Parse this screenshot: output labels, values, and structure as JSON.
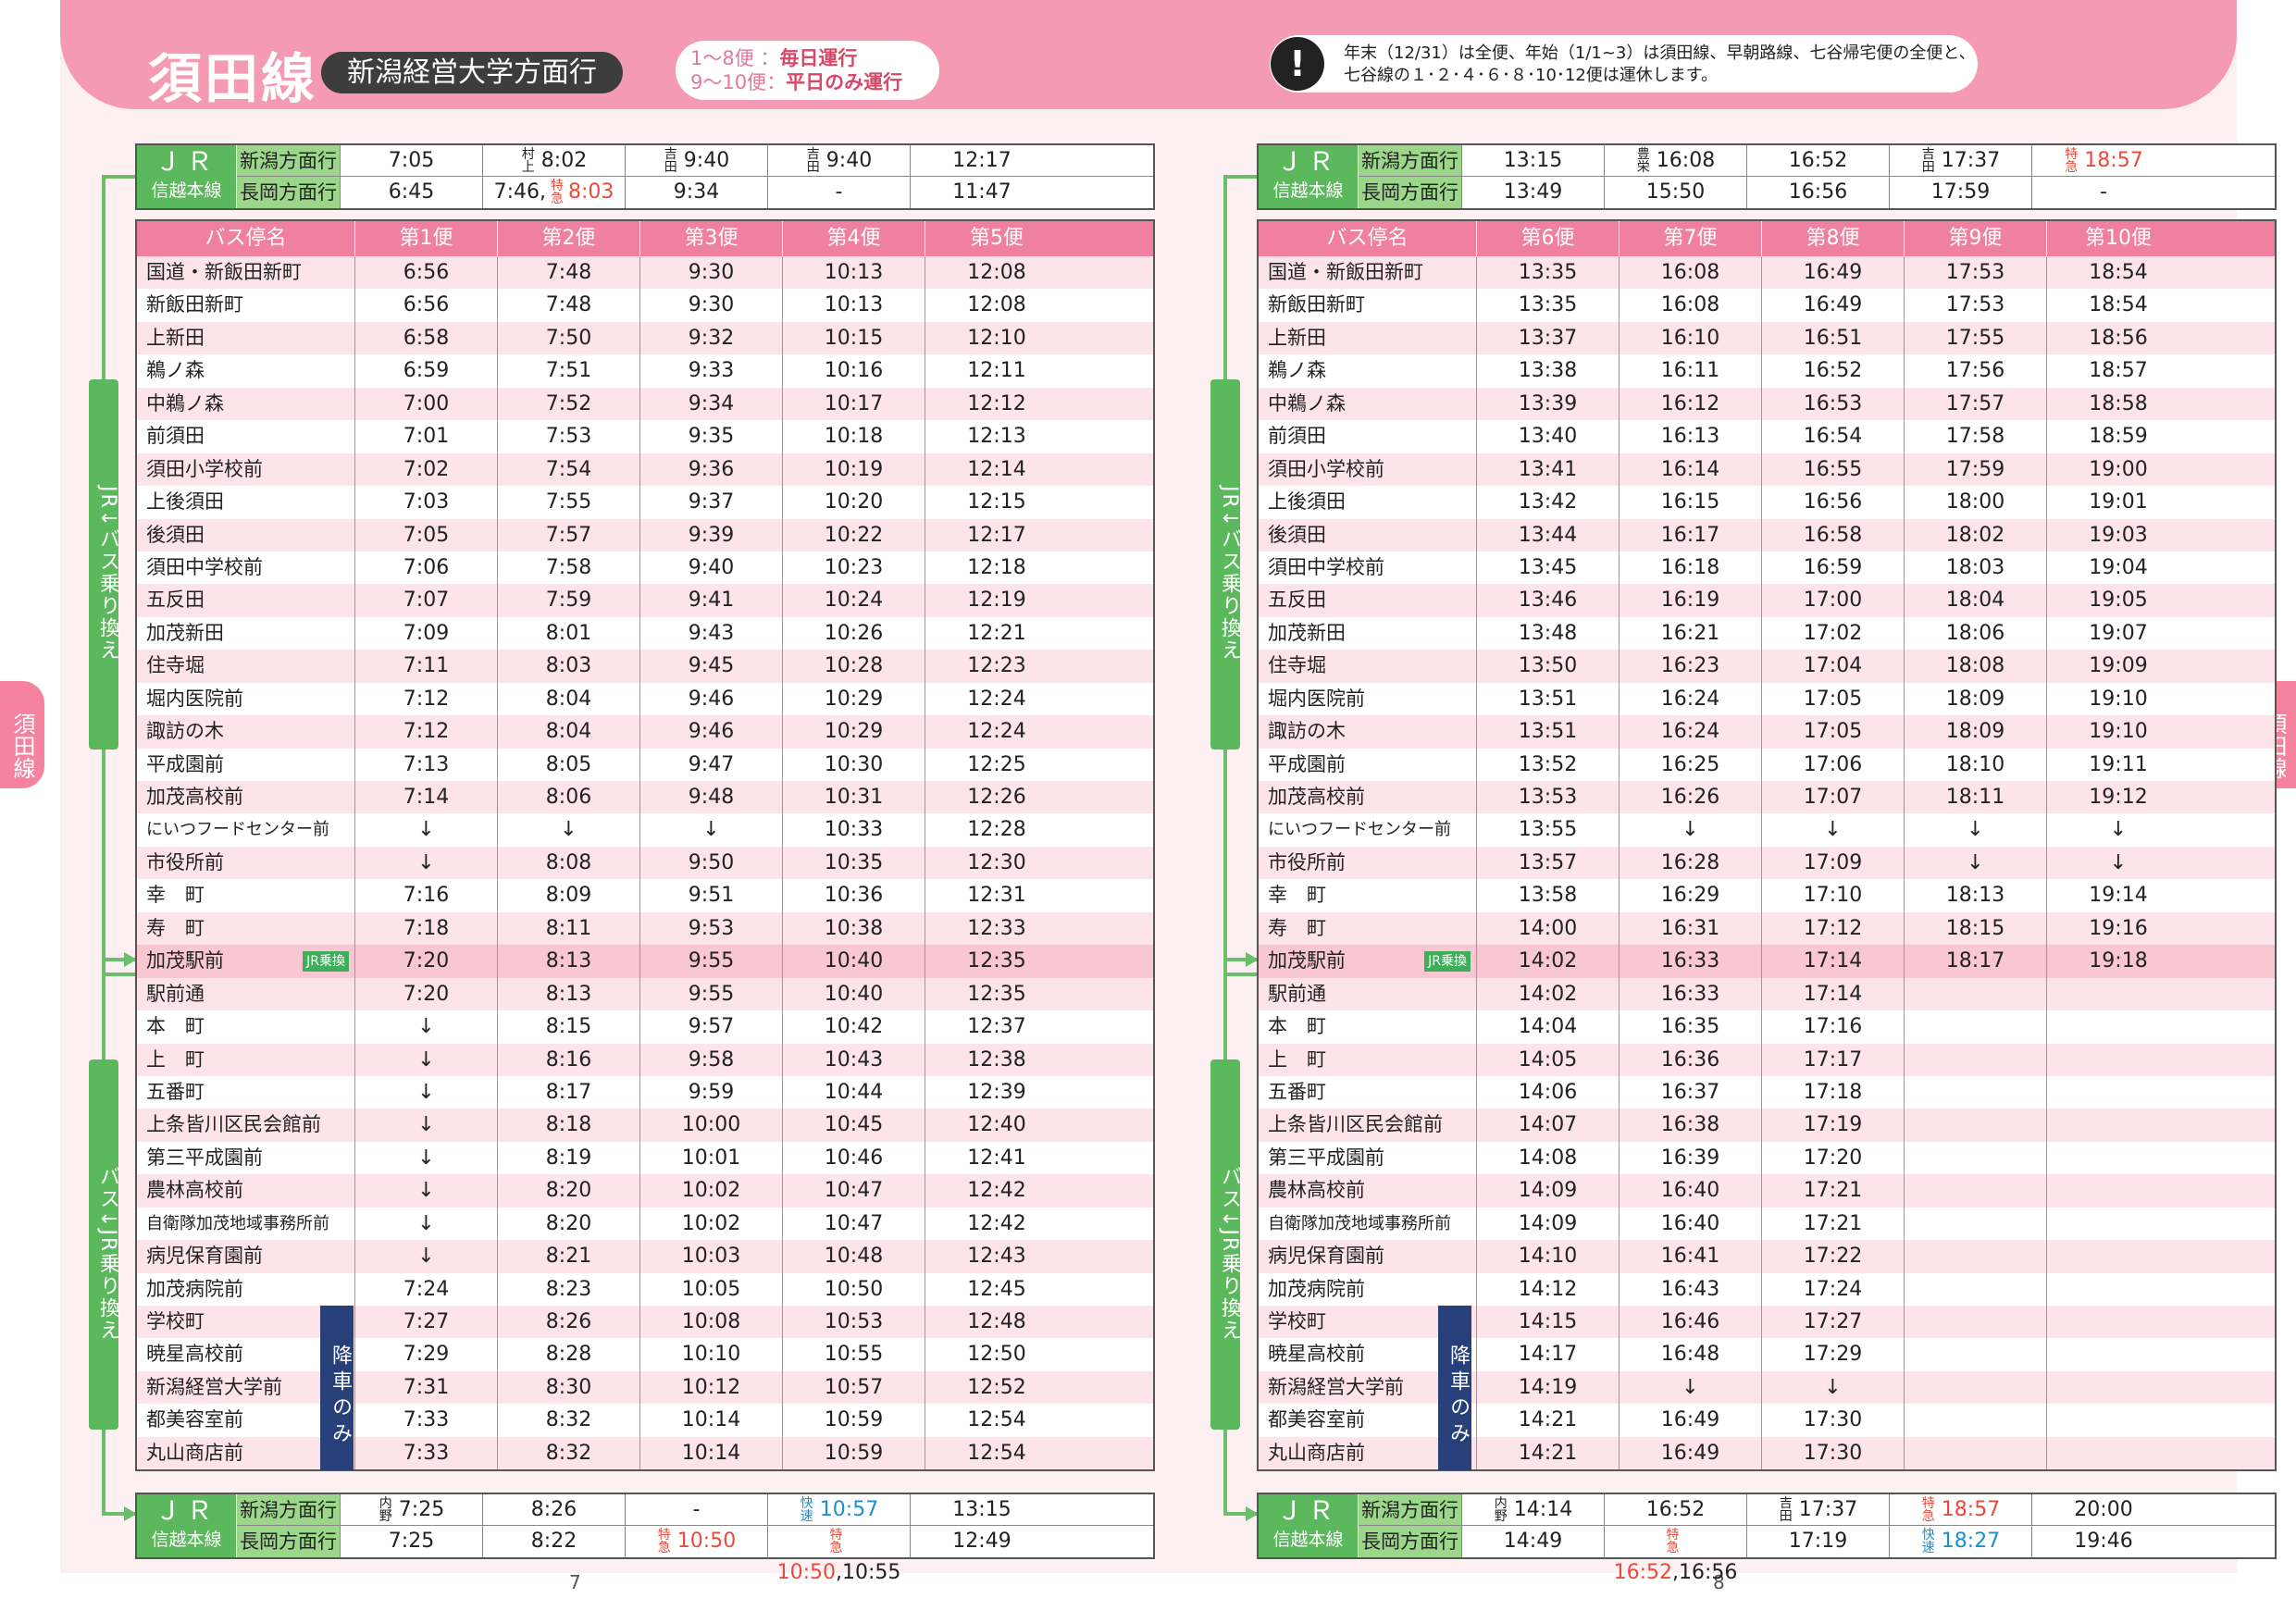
{
  "header": {
    "title": "須田線",
    "subtitle": "新潟経営大学方面行",
    "run_info": [
      {
        "prefix": "1～8便 ：",
        "emph": "毎日運行"
      },
      {
        "prefix": "9～10便：",
        "emph": "平日のみ運行"
      }
    ],
    "notice_line1": "年末（12/31）は全便、年始（1/1~3）は須田線、早朝路線、七谷帰宅便の全便と、",
    "notice_line2": "七谷線の１･２･４･６･８･10･12便は運休します。",
    "notice_icon": "exclamation-icon"
  },
  "side_tab": "須田線",
  "colors": {
    "pink": "#f59ab4",
    "green": "#5cb85c",
    "navy": "#27407a",
    "express_red": "#e84b3a",
    "rapid_blue": "#1d8ecf"
  },
  "labels": {
    "jr": "ＪＲ",
    "jr_line": "信越本線",
    "dir_niigata": "新潟方面行",
    "dir_nagaoka": "長岡方面行",
    "stop_header": "バス停名",
    "jr_badge": "JR乗換",
    "dropoff_only": "降車のみ",
    "transfer_up": "JR↓バス乗り換え",
    "transfer_down": "バス↓JR乗り換え"
  },
  "left": {
    "page_number": "7",
    "top_jr": {
      "niigata": [
        {
          "note": "",
          "time": "7:05"
        },
        {
          "note": "村上",
          "time": "8:02"
        },
        {
          "note": "吉田",
          "time": "9:40"
        },
        {
          "note": "吉田",
          "time": "9:40"
        },
        {
          "note": "",
          "time": "12:17"
        }
      ],
      "nagaoka": [
        {
          "note": "",
          "time": "6:45"
        },
        {
          "note": "",
          "time": "7:46,",
          "note2": "特急",
          "time2": "8:03"
        },
        {
          "note": "",
          "time": "9:34"
        },
        {
          "note": "",
          "time": "-"
        },
        {
          "note": "",
          "time": "11:47"
        }
      ]
    },
    "table": {
      "headers": [
        "第1便",
        "第2便",
        "第3便",
        "第4便",
        "第5便"
      ],
      "rows": [
        [
          "国道・新飯田新町",
          "6:56",
          "7:48",
          "9:30",
          "10:13",
          "12:08"
        ],
        [
          "新飯田新町",
          "6:56",
          "7:48",
          "9:30",
          "10:13",
          "12:08"
        ],
        [
          "上新田",
          "6:58",
          "7:50",
          "9:32",
          "10:15",
          "12:10"
        ],
        [
          "鵜ノ森",
          "6:59",
          "7:51",
          "9:33",
          "10:16",
          "12:11"
        ],
        [
          "中鵜ノ森",
          "7:00",
          "7:52",
          "9:34",
          "10:17",
          "12:12"
        ],
        [
          "前須田",
          "7:01",
          "7:53",
          "9:35",
          "10:18",
          "12:13"
        ],
        [
          "須田小学校前",
          "7:02",
          "7:54",
          "9:36",
          "10:19",
          "12:14"
        ],
        [
          "上後須田",
          "7:03",
          "7:55",
          "9:37",
          "10:20",
          "12:15"
        ],
        [
          "後須田",
          "7:05",
          "7:57",
          "9:39",
          "10:22",
          "12:17"
        ],
        [
          "須田中学校前",
          "7:06",
          "7:58",
          "9:40",
          "10:23",
          "12:18"
        ],
        [
          "五反田",
          "7:07",
          "7:59",
          "9:41",
          "10:24",
          "12:19"
        ],
        [
          "加茂新田",
          "7:09",
          "8:01",
          "9:43",
          "10:26",
          "12:21"
        ],
        [
          "住寺堀",
          "7:11",
          "8:03",
          "9:45",
          "10:28",
          "12:23"
        ],
        [
          "堀内医院前",
          "7:12",
          "8:04",
          "9:46",
          "10:29",
          "12:24"
        ],
        [
          "諏訪の木",
          "7:12",
          "8:04",
          "9:46",
          "10:29",
          "12:24"
        ],
        [
          "平成園前",
          "7:13",
          "8:05",
          "9:47",
          "10:30",
          "12:25"
        ],
        [
          "加茂高校前",
          "7:14",
          "8:06",
          "9:48",
          "10:31",
          "12:26"
        ],
        [
          "にいつフードセンター前",
          "↓",
          "↓",
          "↓",
          "10:33",
          "12:28"
        ],
        [
          "市役所前",
          "↓",
          "8:08",
          "9:50",
          "10:35",
          "12:30"
        ],
        [
          "幸　町",
          "7:16",
          "8:09",
          "9:51",
          "10:36",
          "12:31"
        ],
        [
          "寿　町",
          "7:18",
          "8:11",
          "9:53",
          "10:38",
          "12:33"
        ],
        [
          "加茂駅前",
          "7:20",
          "8:13",
          "9:55",
          "10:40",
          "12:35"
        ],
        [
          "駅前通",
          "7:20",
          "8:13",
          "9:55",
          "10:40",
          "12:35"
        ],
        [
          "本　町",
          "↓",
          "8:15",
          "9:57",
          "10:42",
          "12:37"
        ],
        [
          "上　町",
          "↓",
          "8:16",
          "9:58",
          "10:43",
          "12:38"
        ],
        [
          "五番町",
          "↓",
          "8:17",
          "9:59",
          "10:44",
          "12:39"
        ],
        [
          "上条皆川区民会館前",
          "↓",
          "8:18",
          "10:00",
          "10:45",
          "12:40"
        ],
        [
          "第三平成園前",
          "↓",
          "8:19",
          "10:01",
          "10:46",
          "12:41"
        ],
        [
          "農林高校前",
          "↓",
          "8:20",
          "10:02",
          "10:47",
          "12:42"
        ],
        [
          "自衛隊加茂地域事務所前",
          "↓",
          "8:20",
          "10:02",
          "10:47",
          "12:42"
        ],
        [
          "病児保育園前",
          "↓",
          "8:21",
          "10:03",
          "10:48",
          "12:43"
        ],
        [
          "加茂病院前",
          "7:24",
          "8:23",
          "10:05",
          "10:50",
          "12:45"
        ],
        [
          "学校町",
          "7:27",
          "8:26",
          "10:08",
          "10:53",
          "12:48"
        ],
        [
          "暁星高校前",
          "7:29",
          "8:28",
          "10:10",
          "10:55",
          "12:50"
        ],
        [
          "新潟経営大学前",
          "7:31",
          "8:30",
          "10:12",
          "10:57",
          "12:52"
        ],
        [
          "都美容室前",
          "7:33",
          "8:32",
          "10:14",
          "10:59",
          "12:54"
        ],
        [
          "丸山商店前",
          "7:33",
          "8:32",
          "10:14",
          "10:59",
          "12:54"
        ]
      ]
    },
    "bottom_jr": {
      "niigata": [
        {
          "note": "内野",
          "time": "7:25"
        },
        {
          "note": "",
          "time": "8:26"
        },
        {
          "note": "",
          "time": "-"
        },
        {
          "note": "快速",
          "time": "10:57",
          "style": "ks"
        },
        {
          "note": "",
          "time": "13:15"
        }
      ],
      "nagaoka": [
        {
          "note": "",
          "time": "7:25"
        },
        {
          "note": "",
          "time": "8:22"
        },
        {
          "note": "特急",
          "time": "10:50",
          "style": "tk"
        },
        {
          "note": "特急",
          "time": "10:50",
          "style": "tk",
          "extra": ",10:55"
        },
        {
          "note": "",
          "time": "12:49"
        }
      ]
    }
  },
  "right": {
    "page_number": "8",
    "top_jr": {
      "niigata": [
        {
          "note": "",
          "time": "13:15"
        },
        {
          "note": "豊栄",
          "time": "16:08"
        },
        {
          "note": "",
          "time": "16:52"
        },
        {
          "note": "吉田",
          "time": "17:37"
        },
        {
          "note": "特急",
          "time": "18:57",
          "style": "tk"
        }
      ],
      "nagaoka": [
        {
          "note": "",
          "time": "13:49"
        },
        {
          "note": "",
          "time": "15:50"
        },
        {
          "note": "",
          "time": "16:56"
        },
        {
          "note": "",
          "time": "17:59"
        },
        {
          "note": "",
          "time": "-"
        }
      ]
    },
    "table": {
      "headers": [
        "第6便",
        "第7便",
        "第8便",
        "第9便",
        "第10便"
      ],
      "rows": [
        [
          "国道・新飯田新町",
          "13:35",
          "16:08",
          "16:49",
          "17:53",
          "18:54"
        ],
        [
          "新飯田新町",
          "13:35",
          "16:08",
          "16:49",
          "17:53",
          "18:54"
        ],
        [
          "上新田",
          "13:37",
          "16:10",
          "16:51",
          "17:55",
          "18:56"
        ],
        [
          "鵜ノ森",
          "13:38",
          "16:11",
          "16:52",
          "17:56",
          "18:57"
        ],
        [
          "中鵜ノ森",
          "13:39",
          "16:12",
          "16:53",
          "17:57",
          "18:58"
        ],
        [
          "前須田",
          "13:40",
          "16:13",
          "16:54",
          "17:58",
          "18:59"
        ],
        [
          "須田小学校前",
          "13:41",
          "16:14",
          "16:55",
          "17:59",
          "19:00"
        ],
        [
          "上後須田",
          "13:42",
          "16:15",
          "16:56",
          "18:00",
          "19:01"
        ],
        [
          "後須田",
          "13:44",
          "16:17",
          "16:58",
          "18:02",
          "19:03"
        ],
        [
          "須田中学校前",
          "13:45",
          "16:18",
          "16:59",
          "18:03",
          "19:04"
        ],
        [
          "五反田",
          "13:46",
          "16:19",
          "17:00",
          "18:04",
          "19:05"
        ],
        [
          "加茂新田",
          "13:48",
          "16:21",
          "17:02",
          "18:06",
          "19:07"
        ],
        [
          "住寺堀",
          "13:50",
          "16:23",
          "17:04",
          "18:08",
          "19:09"
        ],
        [
          "堀内医院前",
          "13:51",
          "16:24",
          "17:05",
          "18:09",
          "19:10"
        ],
        [
          "諏訪の木",
          "13:51",
          "16:24",
          "17:05",
          "18:09",
          "19:10"
        ],
        [
          "平成園前",
          "13:52",
          "16:25",
          "17:06",
          "18:10",
          "19:11"
        ],
        [
          "加茂高校前",
          "13:53",
          "16:26",
          "17:07",
          "18:11",
          "19:12"
        ],
        [
          "にいつフードセンター前",
          "13:55",
          "↓",
          "↓",
          "↓",
          "↓"
        ],
        [
          "市役所前",
          "13:57",
          "16:28",
          "17:09",
          "↓",
          "↓"
        ],
        [
          "幸　町",
          "13:58",
          "16:29",
          "17:10",
          "18:13",
          "19:14"
        ],
        [
          "寿　町",
          "14:00",
          "16:31",
          "17:12",
          "18:15",
          "19:16"
        ],
        [
          "加茂駅前",
          "14:02",
          "16:33",
          "17:14",
          "18:17",
          "19:18"
        ],
        [
          "駅前通",
          "14:02",
          "16:33",
          "17:14",
          "",
          ""
        ],
        [
          "本　町",
          "14:04",
          "16:35",
          "17:16",
          "",
          ""
        ],
        [
          "上　町",
          "14:05",
          "16:36",
          "17:17",
          "",
          ""
        ],
        [
          "五番町",
          "14:06",
          "16:37",
          "17:18",
          "",
          ""
        ],
        [
          "上条皆川区民会館前",
          "14:07",
          "16:38",
          "17:19",
          "",
          ""
        ],
        [
          "第三平成園前",
          "14:08",
          "16:39",
          "17:20",
          "",
          ""
        ],
        [
          "農林高校前",
          "14:09",
          "16:40",
          "17:21",
          "",
          ""
        ],
        [
          "自衛隊加茂地域事務所前",
          "14:09",
          "16:40",
          "17:21",
          "",
          ""
        ],
        [
          "病児保育園前",
          "14:10",
          "16:41",
          "17:22",
          "",
          ""
        ],
        [
          "加茂病院前",
          "14:12",
          "16:43",
          "17:24",
          "",
          ""
        ],
        [
          "学校町",
          "14:15",
          "16:46",
          "17:27",
          "",
          ""
        ],
        [
          "暁星高校前",
          "14:17",
          "16:48",
          "17:29",
          "",
          ""
        ],
        [
          "新潟経営大学前",
          "14:19",
          "↓",
          "↓",
          "",
          ""
        ],
        [
          "都美容室前",
          "14:21",
          "16:49",
          "17:30",
          "",
          ""
        ],
        [
          "丸山商店前",
          "14:21",
          "16:49",
          "17:30",
          "",
          ""
        ]
      ]
    },
    "bottom_jr": {
      "niigata": [
        {
          "note": "内野",
          "time": "14:14"
        },
        {
          "note": "",
          "time": "16:52"
        },
        {
          "note": "吉田",
          "time": "17:37"
        },
        {
          "note": "特急",
          "time": "18:57",
          "style": "tk"
        },
        {
          "note": "",
          "time": "20:00"
        }
      ],
      "nagaoka": [
        {
          "note": "",
          "time": "14:49"
        },
        {
          "note": "特急",
          "time": "16:52",
          "style": "tk",
          "extra": ",16:56"
        },
        {
          "note": "",
          "time": "17:19"
        },
        {
          "note": "快速",
          "time": "18:27",
          "style": "ks"
        },
        {
          "note": "",
          "time": "19:46"
        }
      ]
    }
  }
}
